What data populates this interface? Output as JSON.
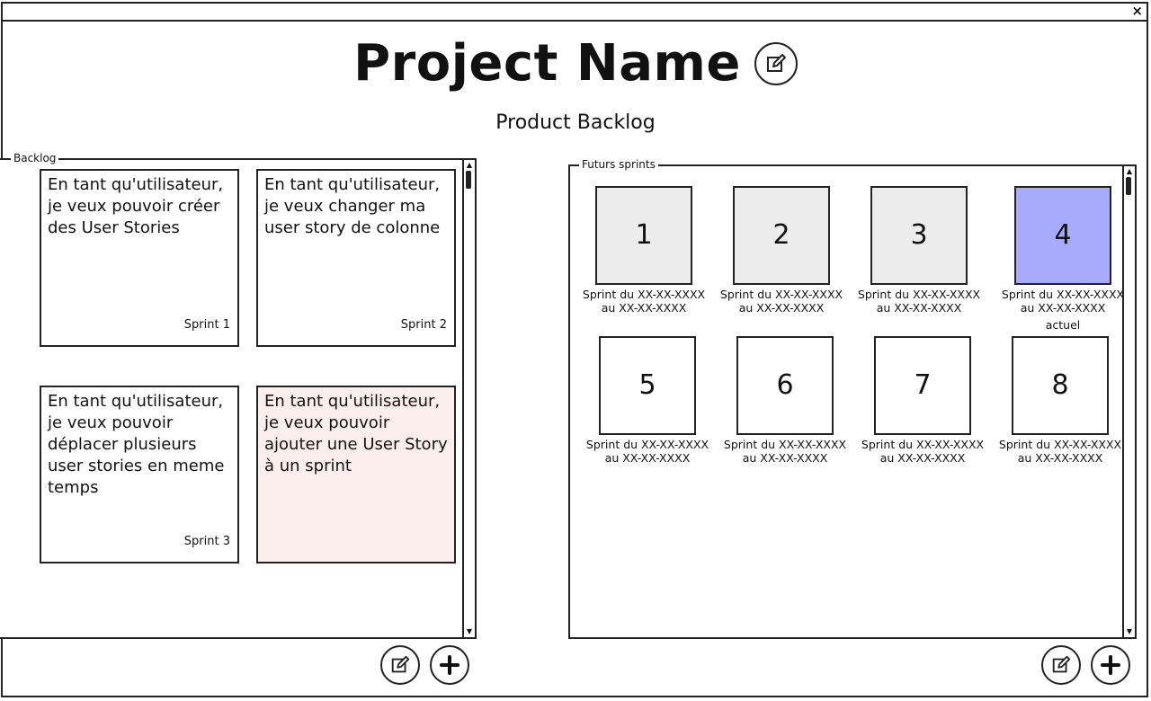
{
  "window": {
    "close_label": "×"
  },
  "project": {
    "name": "Project Name"
  },
  "page": {
    "subtitle": "Product Backlog"
  },
  "backlog": {
    "legend": "Backlog",
    "stories": [
      {
        "text": "En tant qu'utilisateur, je veux pouvoir créer des User Stories",
        "sprint": "Sprint 1"
      },
      {
        "text": "En tant qu'utilisateur, je veux changer ma user story de colonne",
        "sprint": "Sprint 2"
      },
      {
        "text": "En tant qu'utilisateur, je veux pouvoir déplacer plusieurs user stories en meme temps",
        "sprint": "Sprint 3"
      },
      {
        "text": "En tant qu'utilisateur, je veux pouvoir ajouter une User Story à un sprint",
        "sprint": ""
      }
    ]
  },
  "futures": {
    "legend": "Futurs sprints",
    "sprints": [
      {
        "number": "1",
        "dates_line1": "Sprint du XX-XX-XXXX",
        "dates_line2": "au XX-XX-XXXX"
      },
      {
        "number": "2",
        "dates_line1": "Sprint du XX-XX-XXXX",
        "dates_line2": "au XX-XX-XXXX"
      },
      {
        "number": "3",
        "dates_line1": "Sprint du XX-XX-XXXX",
        "dates_line2": "au XX-XX-XXXX"
      },
      {
        "number": "4",
        "dates_line1": "Sprint du XX-XX-XXXX",
        "dates_line2": "au XX-XX-XXXX",
        "tag": "actuel"
      },
      {
        "number": "5",
        "dates_line1": "Sprint du XX-XX-XXXX",
        "dates_line2": "au XX-XX-XXXX"
      },
      {
        "number": "6",
        "dates_line1": "Sprint du XX-XX-XXXX",
        "dates_line2": "au XX-XX-XXXX"
      },
      {
        "number": "7",
        "dates_line1": "Sprint du XX-XX-XXXX",
        "dates_line2": "au XX-XX-XXXX"
      },
      {
        "number": "8",
        "dates_line1": "Sprint du XX-XX-XXXX",
        "dates_line2": "au XX-XX-XXXX"
      }
    ]
  },
  "colors": {
    "current_sprint": "#a8abfb",
    "past_sprint": "#ececec",
    "highlight_story": "#fdeeee"
  },
  "icons": {
    "edit": "edit-icon",
    "add": "plus-icon",
    "close": "close-icon"
  }
}
